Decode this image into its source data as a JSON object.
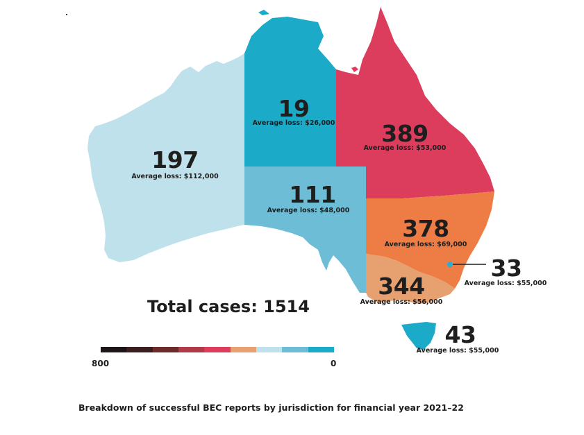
{
  "map": {
    "total_label": "Total cases: 1514",
    "caption": "Breakdown of successful BEC reports by jurisdiction for financial year 2021–22",
    "regions": [
      {
        "id": "wa",
        "name": "Western Australia",
        "count": "197",
        "avg": "Average loss: $112,000",
        "color": "#bfe1eb"
      },
      {
        "id": "nt",
        "name": "Northern Territory",
        "count": "19",
        "avg": "Average loss: $26,000",
        "color": "#1caac9"
      },
      {
        "id": "sa",
        "name": "South Australia",
        "count": "111",
        "avg": "Average loss: $48,000",
        "color": "#6cbdd5"
      },
      {
        "id": "qld",
        "name": "Queensland",
        "count": "389",
        "avg": "Average loss: $53,000",
        "color": "#dc3d5d"
      },
      {
        "id": "nsw",
        "name": "New South Wales",
        "count": "378",
        "avg": "Average loss: $69,000",
        "color": "#ee7d45"
      },
      {
        "id": "act",
        "name": "Australian Capital Territory",
        "count": "33",
        "avg": "Average loss: $55,000",
        "color": "#2aaed2"
      },
      {
        "id": "vic",
        "name": "Victoria",
        "count": "344",
        "avg": "Average loss: $56,000",
        "color": "#e7a170"
      },
      {
        "id": "tas",
        "name": "Tasmania",
        "count": "43",
        "avg": "Average loss: $55,000",
        "color": "#1caac9"
      }
    ],
    "legend": {
      "max_label": "800",
      "min_label": "0",
      "colors": [
        "#1c1618",
        "#3a1d1e",
        "#6d2a2b",
        "#b03a48",
        "#dc3d5d",
        "#e7a170",
        "#bfe1eb",
        "#6cbdd5",
        "#1caac9"
      ]
    }
  }
}
